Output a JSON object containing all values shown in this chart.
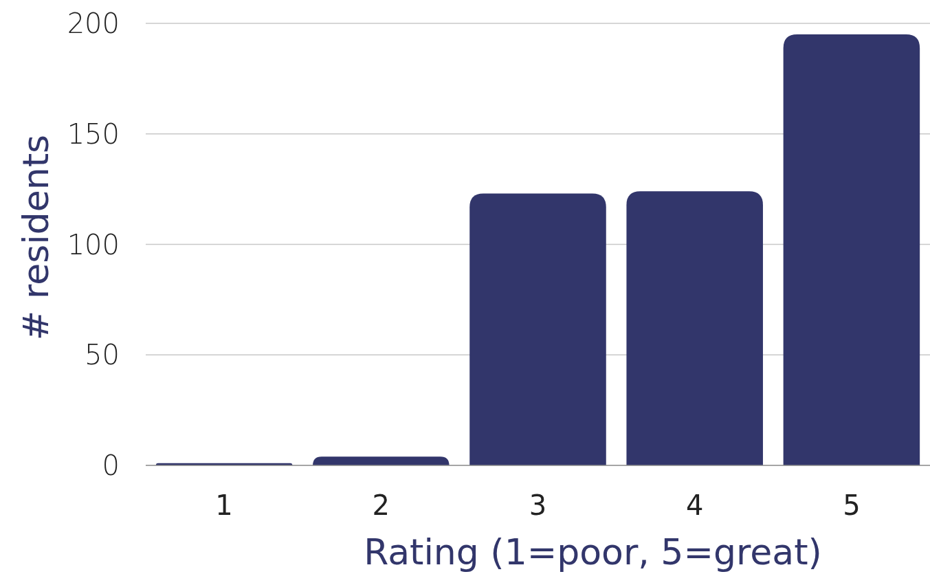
{
  "chart_data": {
    "type": "bar",
    "xlabel": "Rating (1=poor, 5=great)",
    "ylabel": "# residents",
    "categories": [
      "1",
      "2",
      "3",
      "4",
      "5"
    ],
    "values": [
      1,
      4,
      123,
      124,
      195
    ],
    "color": "#32366b",
    "ylim": [
      0,
      200
    ],
    "yticks": [
      0,
      50,
      100,
      150,
      200
    ],
    "grid": "y"
  }
}
